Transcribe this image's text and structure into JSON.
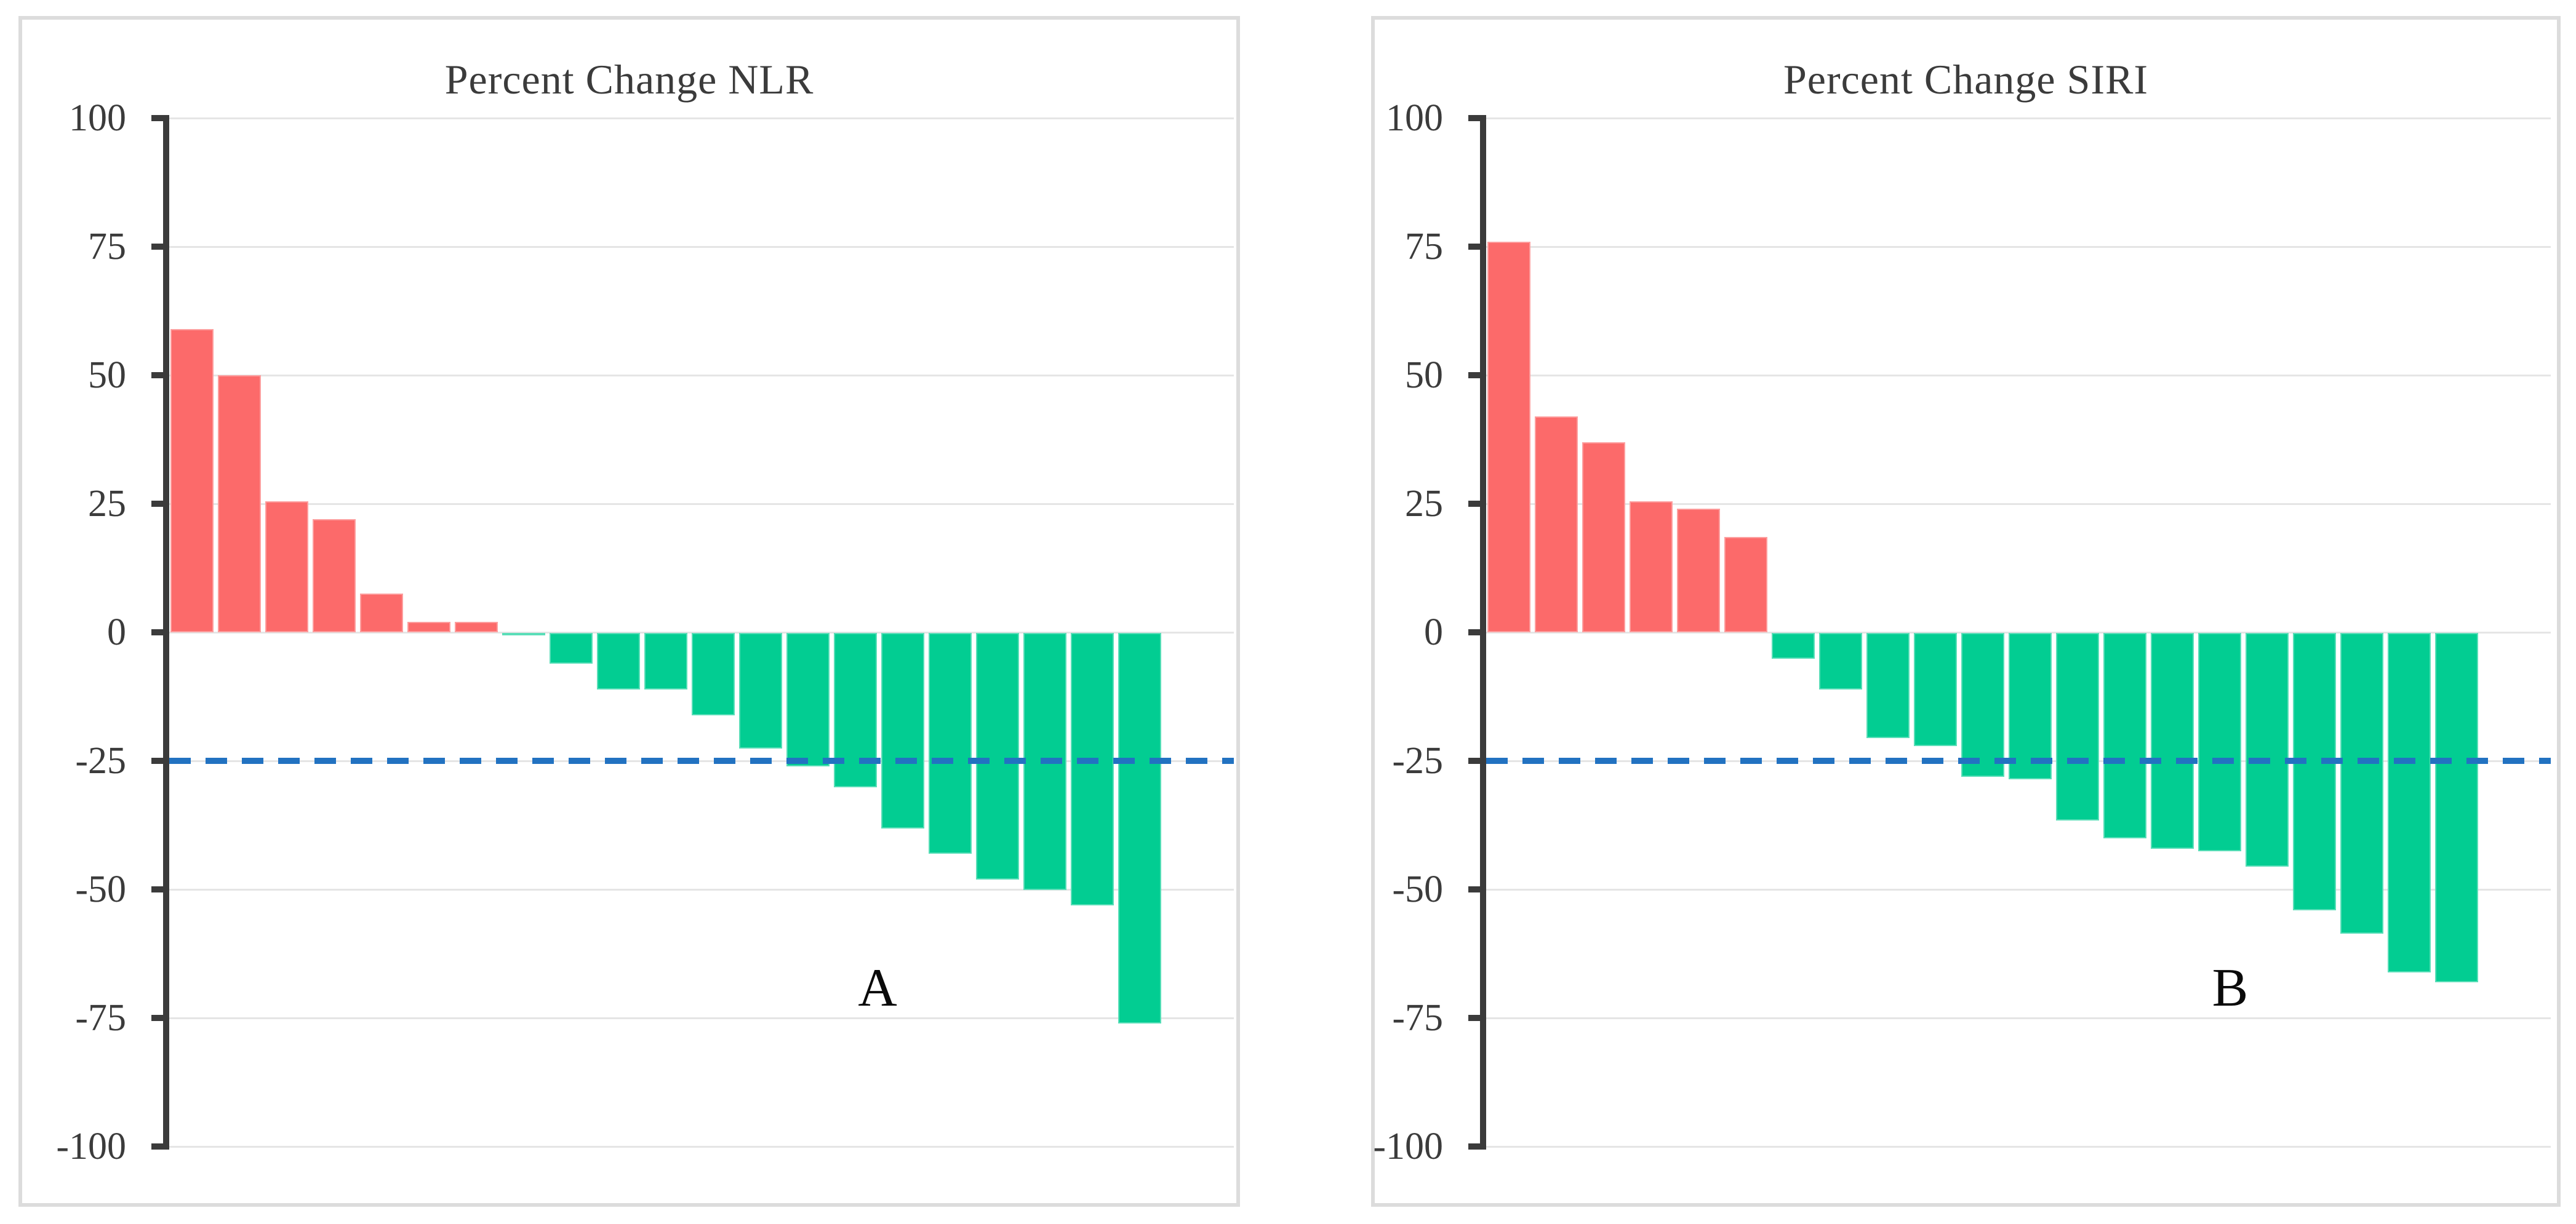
{
  "figure": {
    "background": "#ffffff",
    "panel_border_color": "#DCDCDC",
    "text_color": "#3B3B3B",
    "letter_color": "#0a0a0a"
  },
  "chart_data": [
    {
      "type": "bar",
      "title": "Percent Change NLR",
      "panel_label": "A",
      "xlabel": "",
      "ylabel": "",
      "ylim": [
        -100,
        100
      ],
      "yticks": [
        100,
        75,
        50,
        25,
        0,
        -25,
        -50,
        -75,
        -100
      ],
      "grid": true,
      "legend": false,
      "reference_line_y": -25,
      "reference_line_style": "dashed",
      "reference_line_color": "#2272C1",
      "positive_color": "#FC6A6A",
      "negative_color": "#02CD92",
      "values": [
        59,
        50,
        25.5,
        22,
        7.5,
        2,
        2,
        -0.5,
        -6,
        -11,
        -11,
        -16,
        -22.5,
        -26,
        -30,
        -38,
        -43,
        -48,
        -50,
        -53,
        -76
      ]
    },
    {
      "type": "bar",
      "title": "Percent Change SIRI",
      "panel_label": "B",
      "xlabel": "",
      "ylabel": "",
      "ylim": [
        -100,
        100
      ],
      "yticks": [
        100,
        75,
        50,
        25,
        0,
        -25,
        -50,
        -75,
        -100
      ],
      "grid": true,
      "legend": false,
      "reference_line_y": -25,
      "reference_line_style": "dashed",
      "reference_line_color": "#2272C1",
      "positive_color": "#FC6A6A",
      "negative_color": "#02CD92",
      "values": [
        76,
        42,
        37,
        25.5,
        24,
        18.5,
        -5,
        -11,
        -20.5,
        -22,
        -28,
        -28.5,
        -36.5,
        -40,
        -42,
        -42.5,
        -45.5,
        -54,
        -58.5,
        -66,
        -68
      ]
    }
  ]
}
